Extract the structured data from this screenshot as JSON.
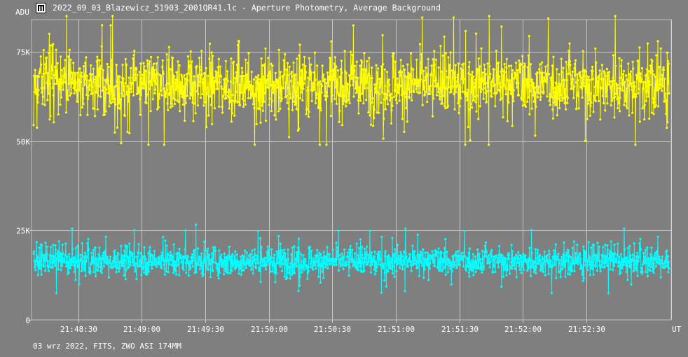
{
  "window": {
    "title": "2022_09_03_Blazewicz_51903_2001QR41.lc - Aperture Photometry, Average Background",
    "icon": "light-curve-app-icon"
  },
  "footer": {
    "info": "03 wrz 2022, FITS, ZWO ASI 174MM"
  },
  "chart_data": {
    "type": "scatter",
    "title": "",
    "ylabel": "ADU",
    "xlabel": "UT",
    "ylim": [
      0,
      84000
    ],
    "y_ticks": [
      0,
      25000,
      50000,
      75000
    ],
    "y_tick_labels": [
      "0",
      "25K",
      "50K",
      "75K"
    ],
    "x_ticks": [
      "21:48:30",
      "21:49:00",
      "21:49:30",
      "21:50:00",
      "21:50:30",
      "21:51:00",
      "21:51:30",
      "21:52:00",
      "21:52:30"
    ],
    "x_range": [
      "21:48:08",
      "21:53:10"
    ],
    "grid": true,
    "connected_points": true,
    "series": [
      {
        "color": "#ffff00",
        "mean": 66000,
        "stdev": 5500,
        "min": 49000,
        "max": 85000
      },
      {
        "color": "#00ffff",
        "mean": 16500,
        "stdev": 2500,
        "min": 7500,
        "max": 27000
      }
    ]
  }
}
